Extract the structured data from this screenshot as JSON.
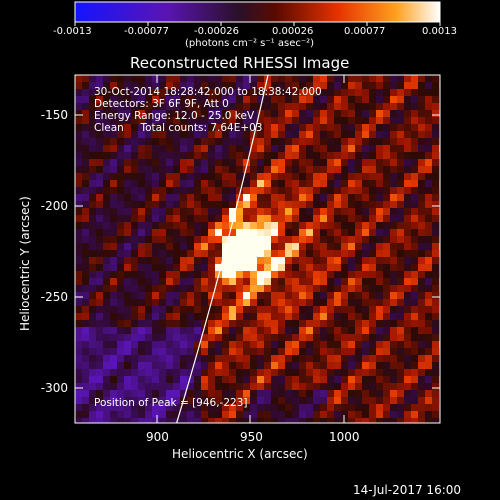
{
  "colorbar": {
    "ticks": [
      "-0.0013",
      "-0.00077",
      "-0.00026",
      "0.00026",
      "0.00077",
      "0.0013"
    ],
    "unit": "(photons cm⁻² s⁻¹ asec⁻²)",
    "min": -0.0013,
    "max": 0.0013
  },
  "plot": {
    "title": "Reconstructed RHESSI Image",
    "xlabel": "Heliocentric X (arcsec)",
    "ylabel": "Heliocentric Y (arcsec)",
    "xticks": [
      "900",
      "950",
      "1000"
    ],
    "yticks": [
      "-150",
      "-200",
      "-250",
      "-300"
    ],
    "xrange": [
      860,
      1045
    ],
    "yrange": [
      -320,
      -125
    ]
  },
  "info": {
    "line1": "30-Oct-2014 18:28:42.000  to 18:38:42.000",
    "line2": "Detectors: 3F 6F 9F, Att 0",
    "line3": "Energy Range: 12.0 - 25.0 keV",
    "line4": "Clean     Total counts: 7.64E+03"
  },
  "peak_label": "Position of Peak = [946,-223]",
  "peak": [
    946,
    -223
  ],
  "footer": "14-Jul-2017 16:00"
}
